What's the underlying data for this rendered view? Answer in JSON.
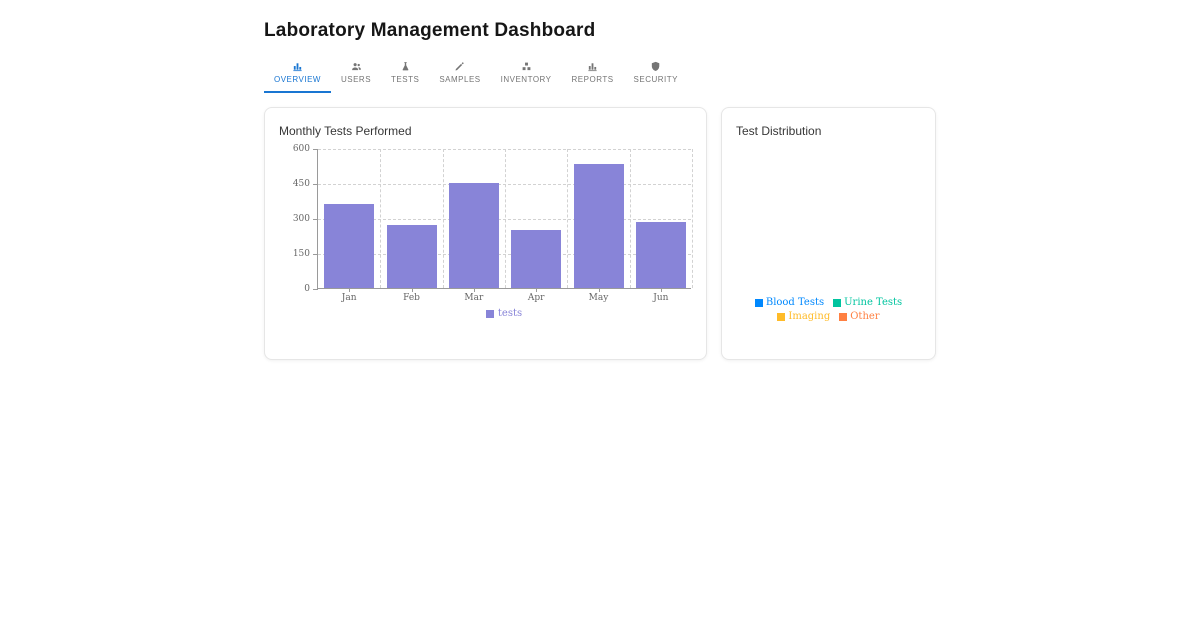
{
  "header": {
    "title": "Laboratory Management Dashboard"
  },
  "colors": {
    "accent": "#1976d2",
    "tab_inactive": "#757575",
    "bar_series": "#8884d8",
    "axis_text": "#666666",
    "grid": "#d2d2d2"
  },
  "tabs": [
    {
      "label": "OVERVIEW",
      "icon": "bar-chart-icon",
      "active": true
    },
    {
      "label": "USERS",
      "icon": "users-icon",
      "active": false
    },
    {
      "label": "TESTS",
      "icon": "flask-icon",
      "active": false
    },
    {
      "label": "SAMPLES",
      "icon": "dropper-icon",
      "active": false
    },
    {
      "label": "INVENTORY",
      "icon": "boxes-icon",
      "active": false
    },
    {
      "label": "REPORTS",
      "icon": "bar-chart-icon",
      "active": false
    },
    {
      "label": "SECURITY",
      "icon": "shield-icon",
      "active": false
    }
  ],
  "cards": {
    "monthly_tests": {
      "title": "Monthly Tests Performed"
    },
    "test_distribution": {
      "title": "Test Distribution"
    }
  },
  "chart_data": [
    {
      "type": "bar",
      "title": "Monthly Tests Performed",
      "categories": [
        "Jan",
        "Feb",
        "Mar",
        "Apr",
        "May",
        "Jun"
      ],
      "series": [
        {
          "name": "tests",
          "color": "#8884d8",
          "values": [
            360,
            270,
            450,
            250,
            530,
            285
          ]
        }
      ],
      "xlabel": "",
      "ylabel": "",
      "ylim": [
        0,
        600
      ],
      "yticks": [
        0,
        150,
        300,
        450,
        600
      ],
      "grid": "dashed",
      "legend_position": "bottom"
    },
    {
      "type": "pie",
      "title": "Test Distribution",
      "legend_position": "bottom",
      "legend": [
        {
          "label": "Blood Tests",
          "color": "#0088FE"
        },
        {
          "label": "Urine Tests",
          "color": "#00C49F"
        },
        {
          "label": "Imaging",
          "color": "#FFBB28"
        },
        {
          "label": "Other",
          "color": "#FF8042"
        }
      ]
    }
  ]
}
